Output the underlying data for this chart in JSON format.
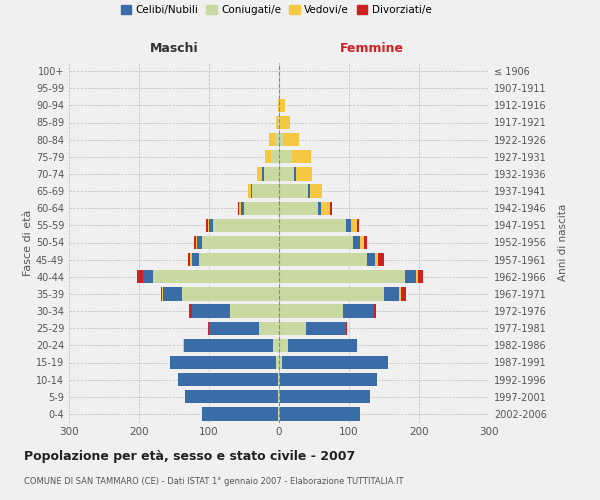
{
  "age_groups": [
    "100+",
    "95-99",
    "90-94",
    "85-89",
    "80-84",
    "75-79",
    "70-74",
    "65-69",
    "60-64",
    "55-59",
    "50-54",
    "45-49",
    "40-44",
    "35-39",
    "30-34",
    "25-29",
    "20-24",
    "15-19",
    "10-14",
    "5-9",
    "0-4"
  ],
  "birth_years": [
    "≤ 1906",
    "1907-1911",
    "1912-1916",
    "1917-1921",
    "1922-1926",
    "1927-1931",
    "1932-1936",
    "1937-1941",
    "1942-1946",
    "1947-1951",
    "1952-1956",
    "1957-1961",
    "1962-1966",
    "1967-1971",
    "1972-1976",
    "1977-1981",
    "1982-1986",
    "1987-1991",
    "1992-1996",
    "1997-2001",
    "2002-2006"
  ],
  "colors": {
    "celibe": "#3a6ca8",
    "coniugato": "#c8d9a2",
    "vedovo": "#f5c842",
    "divorziato": "#cc2222"
  },
  "maschi": {
    "coniugato": [
      0,
      0,
      0,
      2,
      5,
      12,
      22,
      38,
      50,
      95,
      110,
      115,
      180,
      138,
      70,
      28,
      8,
      4,
      2,
      2,
      2
    ],
    "celibe": [
      0,
      0,
      0,
      0,
      0,
      0,
      2,
      2,
      4,
      5,
      7,
      10,
      14,
      28,
      55,
      72,
      128,
      152,
      142,
      132,
      108
    ],
    "vedovo": [
      0,
      0,
      2,
      3,
      10,
      8,
      7,
      4,
      3,
      2,
      2,
      2,
      1,
      1,
      0,
      0,
      1,
      0,
      0,
      0,
      0
    ],
    "divorziato": [
      0,
      0,
      0,
      0,
      0,
      0,
      0,
      0,
      2,
      2,
      3,
      3,
      8,
      2,
      3,
      1,
      0,
      0,
      0,
      0,
      0
    ]
  },
  "femmine": {
    "coniugata": [
      0,
      0,
      0,
      2,
      5,
      18,
      22,
      42,
      55,
      95,
      105,
      125,
      180,
      150,
      92,
      38,
      13,
      4,
      2,
      2,
      2
    ],
    "nubile": [
      0,
      0,
      0,
      0,
      0,
      0,
      2,
      2,
      5,
      8,
      10,
      12,
      15,
      22,
      43,
      58,
      98,
      152,
      138,
      128,
      113
    ],
    "vedova": [
      0,
      2,
      8,
      14,
      23,
      28,
      23,
      18,
      13,
      9,
      7,
      5,
      3,
      2,
      1,
      0,
      1,
      0,
      0,
      0,
      0
    ],
    "divorziata": [
      0,
      0,
      0,
      0,
      0,
      0,
      0,
      0,
      2,
      2,
      3,
      8,
      8,
      8,
      3,
      1,
      0,
      0,
      0,
      0,
      0
    ]
  },
  "title": "Popolazione per età, sesso e stato civile - 2007",
  "subtitle": "COMUNE DI SAN TAMMARO (CE) - Dati ISTAT 1° gennaio 2007 - Elaborazione TUTTITALIA.IT",
  "ylabel_left": "Fasce di età",
  "ylabel_right": "Anni di nascita",
  "xlabel_left": "Maschi",
  "xlabel_right": "Femmine",
  "xlim": 300,
  "legend_labels": [
    "Celibi/Nubili",
    "Coniugati/e",
    "Vedovi/e",
    "Divorziati/e"
  ],
  "background_color": "#f0f0f0"
}
